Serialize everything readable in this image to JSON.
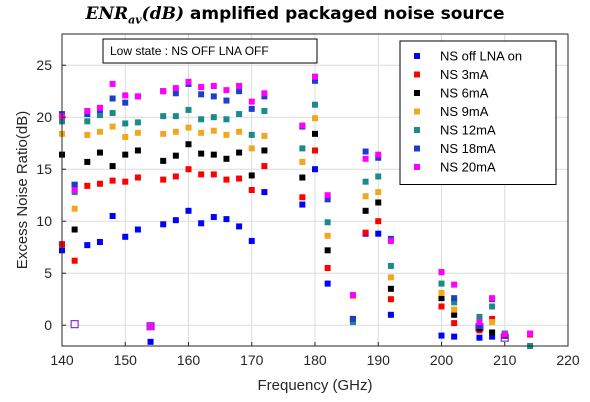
{
  "chart_data": {
    "type": "scatter",
    "title": {
      "math_base": "ENR",
      "math_sub": "av",
      "math_rest": "(dB)",
      "text": "amplified packaged noise source"
    },
    "xlabel": "Frequency (GHz)",
    "ylabel": "Excess Noise Ratio(dB)",
    "xlim": [
      140,
      220
    ],
    "ylim": [
      -2,
      28
    ],
    "xticks": [
      "140",
      "150",
      "160",
      "170",
      "180",
      "190",
      "200",
      "210",
      "220"
    ],
    "yticks": [
      "0",
      "5",
      "10",
      "15",
      "20",
      "25"
    ],
    "grid": true,
    "legend_position": "top-right",
    "annotation": "Low state : NS OFF LNA OFF",
    "low_state": {
      "x": [
        142,
        154,
        206,
        210
      ],
      "y": [
        0.1,
        -0.1,
        -0.2,
        -1.2
      ]
    },
    "series": [
      {
        "name": "NS off LNA on",
        "color": "#0000ff",
        "x": [
          140,
          142,
          144,
          146,
          148,
          150,
          152,
          154,
          156,
          158,
          160,
          162,
          164,
          166,
          168,
          170,
          172,
          178,
          180,
          182,
          186,
          188,
          190,
          192,
          200,
          202,
          206,
          208,
          210
        ],
        "y": [
          7.2,
          13.5,
          7.7,
          8.0,
          10.5,
          8.5,
          9.2,
          -1.6,
          9.7,
          10.1,
          11.0,
          9.8,
          10.4,
          10.2,
          9.5,
          8.1,
          12.8,
          11.6,
          15.0,
          4.0,
          0.4,
          8.8,
          8.8,
          1.0,
          -1.0,
          -1.1,
          -1.2,
          -1.1,
          -1.0
        ]
      },
      {
        "name": "NS 3mA",
        "color": "#ff0000",
        "x": [
          140,
          142,
          144,
          146,
          148,
          150,
          152,
          156,
          158,
          160,
          162,
          164,
          166,
          168,
          170,
          172,
          178,
          180,
          182,
          186,
          188,
          190,
          192,
          200,
          202,
          206,
          208,
          210,
          214
        ],
        "y": [
          7.8,
          6.2,
          13.4,
          13.6,
          13.9,
          13.8,
          14.2,
          14.0,
          14.3,
          15.0,
          14.5,
          14.5,
          14.0,
          14.1,
          13.0,
          15.3,
          12.3,
          16.8,
          5.5,
          0.6,
          8.9,
          10.0,
          2.5,
          1.8,
          0.2,
          -0.5,
          0.6,
          -0.8,
          -0.9
        ]
      },
      {
        "name": "NS 6mA",
        "color": "#000000",
        "x": [
          140,
          142,
          144,
          146,
          148,
          150,
          152,
          156,
          158,
          160,
          162,
          164,
          166,
          168,
          170,
          172,
          178,
          180,
          182,
          186,
          188,
          190,
          192,
          200,
          202,
          206,
          208,
          210
        ],
        "y": [
          16.4,
          9.2,
          15.7,
          16.6,
          15.3,
          16.4,
          16.8,
          15.8,
          16.3,
          17.4,
          16.5,
          16.4,
          16.0,
          16.6,
          14.4,
          16.8,
          14.2,
          18.4,
          7.2,
          0.6,
          11.0,
          11.8,
          3.5,
          2.6,
          1.0,
          -0.3,
          -0.7,
          -1.0
        ]
      },
      {
        "name": "NS 9mA",
        "color": "#f0a81e",
        "x": [
          140,
          142,
          144,
          146,
          148,
          150,
          152,
          156,
          158,
          160,
          162,
          164,
          166,
          168,
          170,
          172,
          178,
          180,
          182,
          186,
          188,
          190,
          192,
          200,
          202,
          206,
          208
        ],
        "y": [
          18.4,
          11.2,
          18.3,
          18.6,
          19.1,
          18.1,
          18.5,
          18.4,
          18.6,
          19.0,
          18.5,
          18.7,
          18.3,
          18.6,
          17.0,
          18.2,
          15.7,
          19.9,
          8.6,
          2.8,
          12.4,
          12.8,
          4.6,
          3.1,
          1.5,
          0.2,
          0.3
        ]
      },
      {
        "name": "NS 12mA",
        "color": "#1a8a8a",
        "x": [
          140,
          142,
          144,
          146,
          148,
          150,
          152,
          156,
          158,
          160,
          162,
          164,
          166,
          168,
          170,
          172,
          178,
          180,
          182,
          186,
          188,
          190,
          192,
          200,
          202,
          206,
          208,
          210,
          214
        ],
        "y": [
          19.6,
          12.8,
          19.6,
          20.2,
          20.4,
          19.4,
          19.5,
          20.1,
          20.1,
          20.7,
          19.8,
          20.0,
          19.8,
          20.3,
          18.3,
          20.6,
          17.0,
          21.2,
          9.9,
          0.3,
          13.8,
          14.3,
          5.7,
          4.0,
          2.2,
          0.8,
          1.8,
          -0.8,
          -2.0
        ]
      },
      {
        "name": "NS 18mA",
        "color": "#1c3fc9",
        "x": [
          140,
          142,
          144,
          146,
          148,
          150,
          152,
          156,
          158,
          160,
          162,
          164,
          166,
          168,
          170,
          172,
          178,
          180,
          182,
          186,
          188,
          190,
          192,
          200,
          202,
          206,
          208
        ],
        "y": [
          20.3,
          13.5,
          20.3,
          20.7,
          21.8,
          21.4,
          22.0,
          22.5,
          22.3,
          23.2,
          22.2,
          22.0,
          21.6,
          22.5,
          20.8,
          22.0,
          19.1,
          23.5,
          12.1,
          0.6,
          16.7,
          16.1,
          8.3,
          5.1,
          2.6,
          -0.1,
          2.5
        ]
      },
      {
        "name": "NS 20mA",
        "color": "#ff00ff",
        "x": [
          140,
          142,
          144,
          146,
          148,
          150,
          152,
          154,
          156,
          158,
          160,
          162,
          164,
          166,
          168,
          170,
          172,
          178,
          180,
          182,
          186,
          188,
          190,
          192,
          200,
          202,
          206,
          208,
          210,
          214
        ],
        "y": [
          20.1,
          13.0,
          20.6,
          20.9,
          23.2,
          22.1,
          22.0,
          -0.1,
          22.5,
          22.8,
          23.4,
          22.9,
          23.0,
          22.6,
          23.0,
          21.5,
          22.3,
          19.2,
          23.9,
          12.5,
          2.9,
          16.0,
          16.4,
          8.1,
          5.1,
          3.9,
          0.3,
          2.6,
          -0.9,
          -0.8
        ]
      }
    ]
  }
}
